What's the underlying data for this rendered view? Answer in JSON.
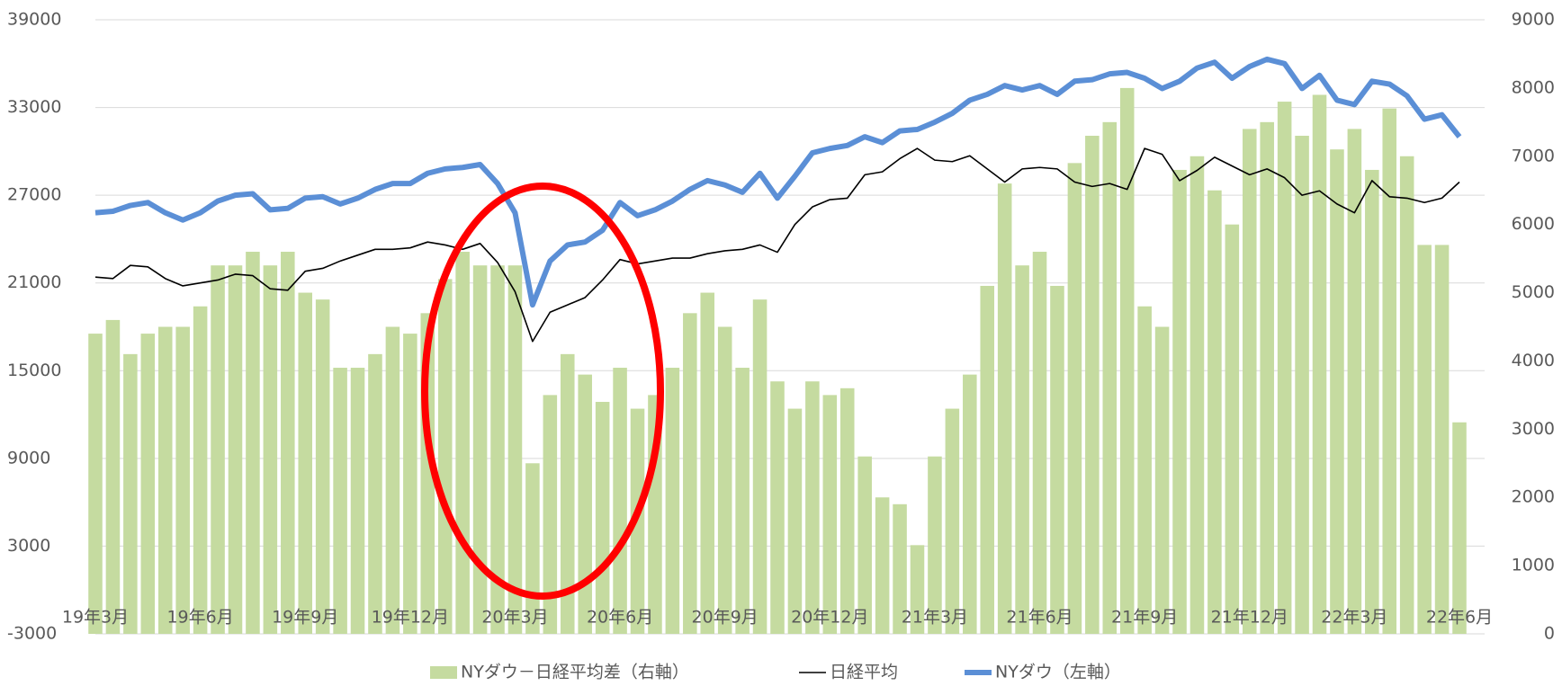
{
  "chart_data": {
    "type": "combo",
    "categories": [
      "19年3月",
      null,
      null,
      null,
      null,
      null,
      "19年6月",
      null,
      null,
      null,
      null,
      null,
      "19年9月",
      null,
      null,
      null,
      null,
      null,
      "19年12月",
      null,
      null,
      null,
      null,
      null,
      "20年3月",
      null,
      null,
      null,
      null,
      null,
      "20年6月",
      null,
      null,
      null,
      null,
      null,
      "20年9月",
      null,
      null,
      null,
      null,
      null,
      "20年12月",
      null,
      null,
      null,
      null,
      null,
      "21年3月",
      null,
      null,
      null,
      null,
      null,
      "21年6月",
      null,
      null,
      null,
      null,
      null,
      "21年9月",
      null,
      null,
      null,
      null,
      null,
      "21年12月",
      null,
      null,
      null,
      null,
      null,
      "22年3月",
      null,
      null,
      null,
      null,
      null,
      "22年6月"
    ],
    "series": [
      {
        "name": "NYダウ－日経平均差（右軸）",
        "type": "bar",
        "axis": "y2",
        "color": "#c5dba0",
        "values": [
          4400,
          4600,
          4100,
          4400,
          4500,
          4500,
          4800,
          5400,
          5400,
          5600,
          5400,
          5600,
          5000,
          4900,
          3900,
          3900,
          4100,
          4500,
          4400,
          4700,
          5200,
          5600,
          5400,
          5400,
          5400,
          2500,
          3500,
          4100,
          3800,
          3400,
          3900,
          3300,
          3500,
          3900,
          4700,
          5000,
          4500,
          3900,
          4900,
          3700,
          3300,
          3700,
          3500,
          3600,
          2600,
          2000,
          1900,
          1300,
          2600,
          3300,
          3800,
          5100,
          6600,
          5400,
          5600,
          5100,
          6900,
          7300,
          7500,
          8000,
          4800,
          4500,
          6800,
          7000,
          6500,
          6000,
          7400,
          7500,
          7800,
          7300,
          7900,
          7100,
          7400,
          6800,
          7700,
          7000,
          5700,
          5700,
          3100
        ]
      },
      {
        "name": "日経平均",
        "type": "line",
        "axis": "y",
        "color": "#000000",
        "values": [
          21400,
          21300,
          22200,
          22100,
          21300,
          20800,
          21000,
          21200,
          21600,
          21500,
          20600,
          20500,
          21800,
          22000,
          22500,
          22900,
          23300,
          23300,
          23400,
          23800,
          23600,
          23300,
          23700,
          22400,
          20400,
          17000,
          19000,
          19500,
          20000,
          21200,
          22600,
          22300,
          22500,
          22700,
          22700,
          23000,
          23200,
          23300,
          23600,
          23100,
          25000,
          26200,
          26700,
          26800,
          28400,
          28600,
          29500,
          30200,
          29400,
          29300,
          29700,
          28800,
          27900,
          28800,
          28900,
          28800,
          27900,
          27600,
          27800,
          27400,
          30200,
          29800,
          28000,
          28700,
          29600,
          29000,
          28400,
          28800,
          28200,
          27000,
          27300,
          26400,
          25800,
          28000,
          26900,
          26800,
          26500,
          26800,
          27900
        ]
      },
      {
        "name": "NYダウ（左軸）",
        "type": "line",
        "axis": "y",
        "color": "#5b8fd6",
        "values": [
          25800,
          25900,
          26300,
          26500,
          25800,
          25300,
          25800,
          26600,
          27000,
          27100,
          26000,
          26100,
          26800,
          26900,
          26400,
          26800,
          27400,
          27800,
          27800,
          28500,
          28800,
          28900,
          29100,
          27800,
          25800,
          19500,
          22500,
          23600,
          23800,
          24600,
          26500,
          25600,
          26000,
          26600,
          27400,
          28000,
          27700,
          27200,
          28500,
          26800,
          28300,
          29900,
          30200,
          30400,
          31000,
          30600,
          31400,
          31500,
          32000,
          32600,
          33500,
          33900,
          34500,
          34200,
          34500,
          33900,
          34800,
          34900,
          35300,
          35400,
          35000,
          34300,
          34800,
          35700,
          36100,
          35000,
          35800,
          36300,
          36000,
          34300,
          35200,
          33500,
          33200,
          34800,
          34600,
          33800,
          32200,
          32500,
          31000
        ]
      }
    ],
    "ylim": [
      -3000,
      39000
    ],
    "yticks": [
      -3000,
      3000,
      9000,
      15000,
      21000,
      27000,
      33000,
      39000
    ],
    "y2lim": [
      0,
      9000
    ],
    "y2ticks": [
      0,
      1000,
      2000,
      3000,
      4000,
      5000,
      6000,
      7000,
      8000,
      9000
    ],
    "grid": true,
    "legend": "bottom"
  }
}
